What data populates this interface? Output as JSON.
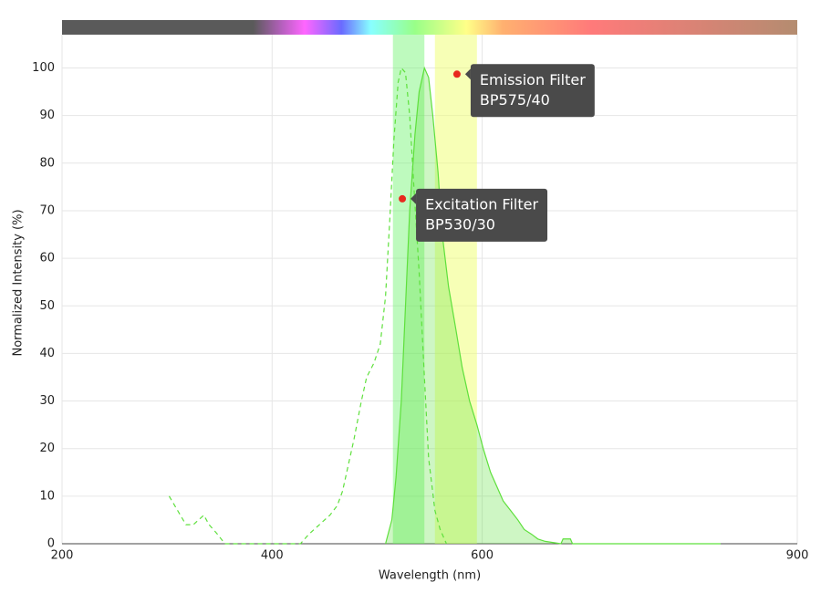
{
  "chart_data": {
    "type": "line",
    "xlabel": "Wavelength (nm)",
    "ylabel": "Normalized Intensity (%)",
    "xlim": [
      200,
      900
    ],
    "ylim": [
      0,
      107
    ],
    "xticks": [
      200,
      400,
      600,
      900
    ],
    "yticks": [
      0,
      10,
      20,
      30,
      40,
      50,
      60,
      70,
      80,
      90,
      100
    ],
    "grid": true,
    "bands": [
      {
        "range": [
          515,
          545
        ],
        "color": "rgba(110,245,110,0.45)"
      },
      {
        "range": [
          555,
          595
        ],
        "color": "rgba(240,255,110,0.5)"
      }
    ],
    "series": [
      {
        "color": "#5ee03c",
        "dashed": true,
        "fill": false,
        "x": [
          302,
          310,
          318,
          325,
          330,
          335,
          340,
          348,
          355,
          427,
          435,
          445,
          455,
          462,
          467,
          472,
          478,
          485,
          490,
          497,
          503,
          508,
          512,
          516,
          520,
          523,
          527,
          531,
          535,
          540,
          545,
          549,
          555,
          560,
          566
        ],
        "values": [
          10,
          7,
          4,
          4,
          5,
          6,
          4,
          2,
          0,
          0,
          2,
          4,
          6,
          8,
          11,
          16,
          22,
          30,
          35,
          38,
          42,
          52,
          68,
          85,
          97,
          100,
          99,
          90,
          75,
          57,
          35,
          18,
          7,
          3,
          0
        ]
      },
      {
        "color": "#5ee03c",
        "dashed": false,
        "fill": true,
        "x": [
          508,
          514,
          518,
          523,
          527,
          531,
          536,
          540,
          545,
          549,
          553,
          558,
          562,
          568,
          575,
          581,
          588,
          595,
          601,
          608,
          614,
          620,
          627,
          634,
          640,
          647,
          653,
          660,
          675,
          677,
          684,
          686,
          827
        ],
        "values": [
          0,
          5,
          14,
          30,
          50,
          70,
          86,
          95,
          100,
          98,
          90,
          78,
          65,
          54,
          45,
          37,
          30,
          25,
          20,
          15,
          12,
          9,
          7,
          5,
          3,
          2,
          1,
          0.5,
          0,
          1,
          1,
          0,
          0
        ]
      }
    ],
    "annotations": [
      {
        "x": 576,
        "y": 98.7,
        "lines": [
          "Emission Filter",
          "BP575/40"
        ]
      },
      {
        "x": 524,
        "y": 72.5,
        "lines": [
          "Excitation Filter",
          "BP530/30"
        ]
      }
    ]
  }
}
